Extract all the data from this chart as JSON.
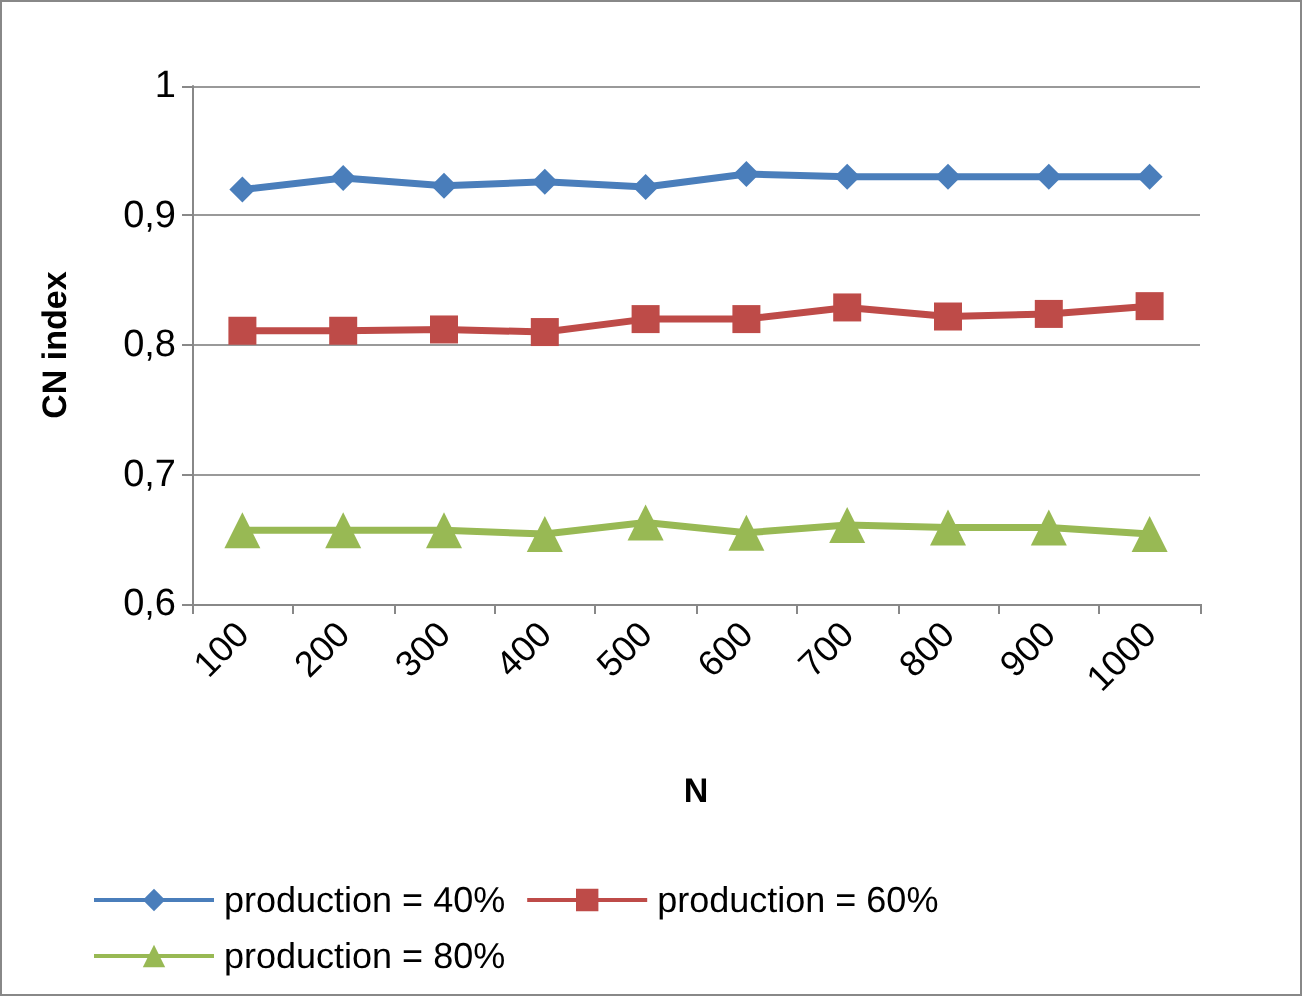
{
  "chart_data": {
    "type": "line",
    "xlabel": "N",
    "ylabel": "CN index",
    "categories": [
      "100",
      "200",
      "300",
      "400",
      "500",
      "600",
      "700",
      "800",
      "900",
      "1000"
    ],
    "series": [
      {
        "name": "production = 40%",
        "color": "#4a7ebb",
        "marker": "diamond",
        "values": [
          0.92,
          0.929,
          0.923,
          0.926,
          0.922,
          0.932,
          0.93,
          0.93,
          0.93,
          0.93
        ]
      },
      {
        "name": "production = 60%",
        "color": "#be4b48",
        "marker": "square",
        "values": [
          0.811,
          0.811,
          0.812,
          0.81,
          0.82,
          0.82,
          0.829,
          0.822,
          0.824,
          0.83
        ]
      },
      {
        "name": "production = 80%",
        "color": "#98b954",
        "marker": "triangle",
        "values": [
          0.657,
          0.657,
          0.657,
          0.654,
          0.663,
          0.655,
          0.661,
          0.659,
          0.659,
          0.654
        ]
      }
    ],
    "ylim": [
      0.6,
      1
    ],
    "yticks": [
      {
        "value": 0.6,
        "label": "0,6"
      },
      {
        "value": 0.7,
        "label": "0,7"
      },
      {
        "value": 0.8,
        "label": "0,8"
      },
      {
        "value": 0.9,
        "label": "0,9"
      },
      {
        "value": 1,
        "label": "1"
      }
    ],
    "grid": "y",
    "legend": "bottom",
    "line_style": "solid"
  }
}
